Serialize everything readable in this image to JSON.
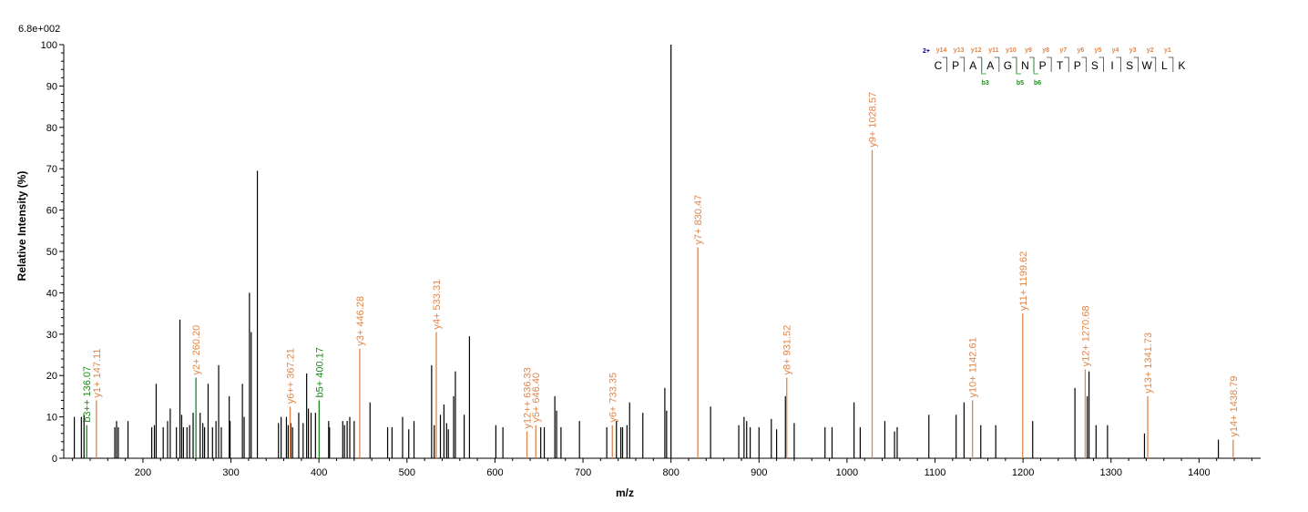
{
  "chart_data": {
    "type": "bar",
    "max_intensity_label": "6.8e+002",
    "xlabel": "m/z",
    "ylabel": "Relative Intensity (%)",
    "xlim": [
      110,
      1470
    ],
    "ylim": [
      0,
      100
    ],
    "x_ticks": [
      200,
      300,
      400,
      500,
      600,
      700,
      800,
      900,
      1000,
      1100,
      1200,
      1300,
      1400
    ],
    "y_ticks": [
      0,
      10,
      20,
      30,
      40,
      50,
      60,
      70,
      80,
      90,
      100
    ],
    "colors": {
      "unannotated": "#000000",
      "y_ion": "#e0864a",
      "b_ion": "#1a8a1a",
      "charge": "#00008b"
    },
    "peaks": [
      {
        "mz": 122,
        "i": 10
      },
      {
        "mz": 130,
        "i": 10
      },
      {
        "mz": 133,
        "i": 10.5
      },
      {
        "mz": 168,
        "i": 7.5
      },
      {
        "mz": 170,
        "i": 9
      },
      {
        "mz": 172,
        "i": 7.5
      },
      {
        "mz": 183,
        "i": 9
      },
      {
        "mz": 210,
        "i": 7.5
      },
      {
        "mz": 213,
        "i": 8
      },
      {
        "mz": 215,
        "i": 18
      },
      {
        "mz": 223,
        "i": 7.5
      },
      {
        "mz": 228,
        "i": 9
      },
      {
        "mz": 231,
        "i": 12
      },
      {
        "mz": 238,
        "i": 7.5
      },
      {
        "mz": 242,
        "i": 33.5
      },
      {
        "mz": 244,
        "i": 10.5
      },
      {
        "mz": 246,
        "i": 7.5
      },
      {
        "mz": 250,
        "i": 7.5
      },
      {
        "mz": 253,
        "i": 8
      },
      {
        "mz": 257,
        "i": 11
      },
      {
        "mz": 265,
        "i": 11
      },
      {
        "mz": 268,
        "i": 8.5
      },
      {
        "mz": 270,
        "i": 7.5
      },
      {
        "mz": 274,
        "i": 18
      },
      {
        "mz": 279,
        "i": 7.5
      },
      {
        "mz": 283,
        "i": 9
      },
      {
        "mz": 286,
        "i": 22.5
      },
      {
        "mz": 289,
        "i": 7.5
      },
      {
        "mz": 298,
        "i": 15
      },
      {
        "mz": 299,
        "i": 9
      },
      {
        "mz": 313,
        "i": 18
      },
      {
        "mz": 315,
        "i": 10
      },
      {
        "mz": 321,
        "i": 40
      },
      {
        "mz": 323,
        "i": 30.5
      },
      {
        "mz": 330,
        "i": 69.5
      },
      {
        "mz": 354,
        "i": 8.5
      },
      {
        "mz": 357,
        "i": 10
      },
      {
        "mz": 363,
        "i": 10
      },
      {
        "mz": 365,
        "i": 8
      },
      {
        "mz": 368,
        "i": 8.5
      },
      {
        "mz": 370,
        "i": 7.5
      },
      {
        "mz": 377,
        "i": 11
      },
      {
        "mz": 382,
        "i": 8.5
      },
      {
        "mz": 386,
        "i": 20.5
      },
      {
        "mz": 388,
        "i": 12
      },
      {
        "mz": 391,
        "i": 11
      },
      {
        "mz": 396,
        "i": 11
      },
      {
        "mz": 411,
        "i": 9
      },
      {
        "mz": 412,
        "i": 7.5
      },
      {
        "mz": 427,
        "i": 9
      },
      {
        "mz": 429,
        "i": 8
      },
      {
        "mz": 432,
        "i": 9
      },
      {
        "mz": 435,
        "i": 10
      },
      {
        "mz": 440,
        "i": 9
      },
      {
        "mz": 458,
        "i": 13.5
      },
      {
        "mz": 478,
        "i": 7.5
      },
      {
        "mz": 483,
        "i": 7.5
      },
      {
        "mz": 495,
        "i": 10
      },
      {
        "mz": 502,
        "i": 7
      },
      {
        "mz": 508,
        "i": 9
      },
      {
        "mz": 528,
        "i": 22.5
      },
      {
        "mz": 531,
        "i": 8
      },
      {
        "mz": 538,
        "i": 10.5
      },
      {
        "mz": 542,
        "i": 13
      },
      {
        "mz": 545,
        "i": 8.5
      },
      {
        "mz": 547,
        "i": 7
      },
      {
        "mz": 553,
        "i": 15
      },
      {
        "mz": 555,
        "i": 21
      },
      {
        "mz": 565,
        "i": 10.5
      },
      {
        "mz": 571,
        "i": 29.5
      },
      {
        "mz": 601,
        "i": 8
      },
      {
        "mz": 609,
        "i": 7.5
      },
      {
        "mz": 652,
        "i": 7.5
      },
      {
        "mz": 656,
        "i": 7.5
      },
      {
        "mz": 668,
        "i": 15
      },
      {
        "mz": 670,
        "i": 11.5
      },
      {
        "mz": 675,
        "i": 7.5
      },
      {
        "mz": 696,
        "i": 9
      },
      {
        "mz": 727,
        "i": 7.5
      },
      {
        "mz": 738,
        "i": 9
      },
      {
        "mz": 743,
        "i": 7.5
      },
      {
        "mz": 745,
        "i": 7.5
      },
      {
        "mz": 750,
        "i": 8
      },
      {
        "mz": 753,
        "i": 13.5
      },
      {
        "mz": 768,
        "i": 11
      },
      {
        "mz": 793,
        "i": 17
      },
      {
        "mz": 795,
        "i": 11.5
      },
      {
        "mz": 800,
        "i": 100
      },
      {
        "mz": 845,
        "i": 12.5
      },
      {
        "mz": 877,
        "i": 8
      },
      {
        "mz": 883,
        "i": 10
      },
      {
        "mz": 886,
        "i": 9
      },
      {
        "mz": 890,
        "i": 7.5
      },
      {
        "mz": 900,
        "i": 7.5
      },
      {
        "mz": 914,
        "i": 9.5
      },
      {
        "mz": 920,
        "i": 7
      },
      {
        "mz": 930,
        "i": 15
      },
      {
        "mz": 940,
        "i": 8.5
      },
      {
        "mz": 975,
        "i": 7.5
      },
      {
        "mz": 983,
        "i": 7.5
      },
      {
        "mz": 1008,
        "i": 13.5
      },
      {
        "mz": 1015,
        "i": 7.5
      },
      {
        "mz": 1043,
        "i": 9
      },
      {
        "mz": 1054,
        "i": 6.5
      },
      {
        "mz": 1057,
        "i": 7.5
      },
      {
        "mz": 1093,
        "i": 10.5
      },
      {
        "mz": 1124,
        "i": 10.5
      },
      {
        "mz": 1133,
        "i": 13.5
      },
      {
        "mz": 1152,
        "i": 8
      },
      {
        "mz": 1169,
        "i": 8
      },
      {
        "mz": 1211,
        "i": 9
      },
      {
        "mz": 1259,
        "i": 17
      },
      {
        "mz": 1273,
        "i": 15
      },
      {
        "mz": 1275,
        "i": 21
      },
      {
        "mz": 1283,
        "i": 8
      },
      {
        "mz": 1296,
        "i": 8
      },
      {
        "mz": 1338,
        "i": 6
      },
      {
        "mz": 1422,
        "i": 4.5
      }
    ],
    "annotated_peaks": [
      {
        "mz": 136.07,
        "i": 8,
        "label": "b3++ 136.07",
        "ion": "b"
      },
      {
        "mz": 147.11,
        "i": 14,
        "label": "y1+ 147.11",
        "ion": "y"
      },
      {
        "mz": 260.2,
        "i": 19.5,
        "label": "y2+ 260.20",
        "ion": "y",
        "line_ion": "b"
      },
      {
        "mz": 367.21,
        "i": 12.5,
        "label": "y6++ 367.21",
        "ion": "y"
      },
      {
        "mz": 400.17,
        "i": 14,
        "label": "b5+ 400.17",
        "ion": "b"
      },
      {
        "mz": 446.28,
        "i": 26.5,
        "label": "y3+ 446.28",
        "ion": "y"
      },
      {
        "mz": 533.31,
        "i": 30.5,
        "label": "y4+ 533.31",
        "ion": "y"
      },
      {
        "mz": 636.33,
        "i": 6.5,
        "label": "y12++ 636.33",
        "ion": "y"
      },
      {
        "mz": 646.4,
        "i": 8,
        "label": "y5+ 646.40",
        "ion": "y"
      },
      {
        "mz": 733.35,
        "i": 8,
        "label": "y6+ 733.35",
        "ion": "y"
      },
      {
        "mz": 830.47,
        "i": 51,
        "label": "y7+ 830.47",
        "ion": "y"
      },
      {
        "mz": 931.52,
        "i": 19.5,
        "label": "y8+ 931.52",
        "ion": "y"
      },
      {
        "mz": 1028.57,
        "i": 74.5,
        "label": "y9+ 1028.57",
        "ion": "y"
      },
      {
        "mz": 1142.61,
        "i": 14,
        "label": "y10+ 1142.61",
        "ion": "y"
      },
      {
        "mz": 1199.62,
        "i": 35,
        "label": "y11+ 1199.62",
        "ion": "y"
      },
      {
        "mz": 1270.68,
        "i": 21.5,
        "label": "y12+ 1270.68",
        "ion": "y"
      },
      {
        "mz": 1341.73,
        "i": 15,
        "label": "y13+ 1341.73",
        "ion": "y"
      },
      {
        "mz": 1438.79,
        "i": 4.5,
        "label": "y14+ 1438.79",
        "ion": "y"
      }
    ],
    "label_overrides": {
      "260.20": "y2+ 260.20"
    },
    "sequence": {
      "charge": "2+",
      "residues": [
        "C",
        "P",
        "A",
        "A",
        "G",
        "N",
        "P",
        "T",
        "P",
        "S",
        "I",
        "S",
        "W",
        "L",
        "K"
      ],
      "y_ions": [
        "y14",
        "y13",
        "y12",
        "y11",
        "y10",
        "y9",
        "y8",
        "y7",
        "y6",
        "y5",
        "y4",
        "y3",
        "y2",
        "y1"
      ],
      "b_ions": [
        {
          "label": "b3",
          "after": 3
        },
        {
          "label": "b5",
          "after": 5
        },
        {
          "label": "b6",
          "after": 6
        }
      ]
    }
  }
}
